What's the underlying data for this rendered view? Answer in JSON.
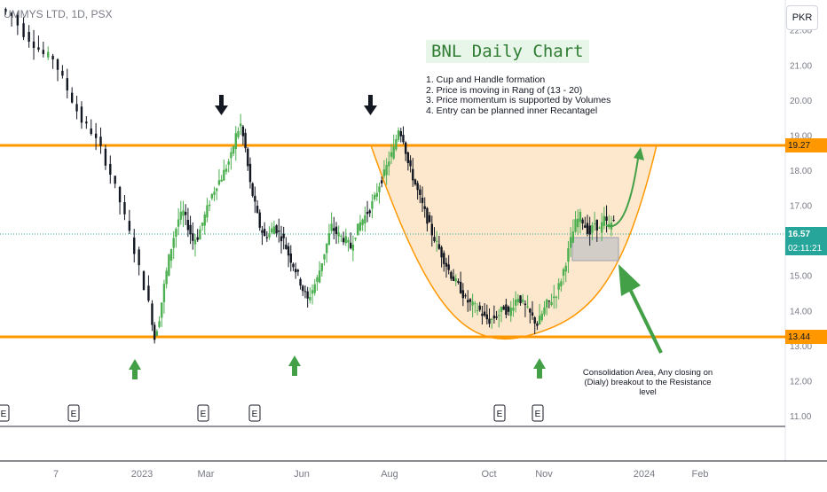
{
  "header": {
    "symbol": "UMMYS LTD, 1D, PSX",
    "currency": "PKR"
  },
  "annotations": {
    "title": "BNL Daily Chart",
    "notes": [
      "1. Cup and Handle formation",
      "2. Price is moving in Rang of (13 - 20)",
      "3. Price momentum is supported by Volumes",
      "4. Entry can be planned inner Recantagel"
    ],
    "consolidation_note": [
      "Consolidation Area, Any closing on",
      "(Dialy) breakout to the Resistance level"
    ]
  },
  "price_tags": {
    "resistance": "19.27",
    "current_price": "16.57",
    "countdown": "02:11:21",
    "support": "13.44"
  },
  "colors": {
    "level_line": "#ff9800",
    "bull": "#4caf50",
    "bear": "#131722",
    "cup_fill": "#fde4c4",
    "arrow_green": "#43a047",
    "arrow_dark": "#131722",
    "title_bg": "#e8f5e9",
    "title_text": "#2e7d32",
    "current_price_bg": "#26a69a"
  },
  "chart_data": {
    "type": "candlestick",
    "title": "UMMYS LTD, 1D, PSX",
    "ylim": [
      10.75,
      23.0
    ],
    "y_ticks": [
      11.0,
      12.0,
      13.0,
      14.0,
      15.0,
      16.0,
      17.0,
      18.0,
      19.0,
      20.0,
      21.0,
      22.0
    ],
    "x_tick_labels": [
      "7",
      "2023",
      "Mar",
      "Jun",
      "Aug",
      "Oct",
      "Nov",
      "2024",
      "Feb"
    ],
    "resistance_level": 19.27,
    "support_level": 13.44,
    "current_price": 16.57,
    "earnings_markers": [
      "E",
      "E",
      "E",
      "E",
      "E",
      "E"
    ],
    "trend_path": [
      [
        0,
        22.6
      ],
      [
        5,
        22.4
      ],
      [
        10,
        21.9
      ],
      [
        14,
        21.6
      ],
      [
        18,
        21.3
      ],
      [
        22,
        21.2
      ],
      [
        26,
        20.6
      ],
      [
        30,
        20.0
      ],
      [
        34,
        19.4
      ],
      [
        38,
        19.1
      ],
      [
        42,
        18.6
      ],
      [
        46,
        17.9
      ],
      [
        50,
        17.1
      ],
      [
        54,
        16.2
      ],
      [
        58,
        15.2
      ],
      [
        62,
        14.2
      ],
      [
        64,
        13.2
      ],
      [
        66,
        13.8
      ],
      [
        68,
        14.7
      ],
      [
        70,
        15.5
      ],
      [
        72,
        16.1
      ],
      [
        74,
        16.6
      ],
      [
        76,
        16.8
      ],
      [
        78,
        16.4
      ],
      [
        80,
        16.0
      ],
      [
        82,
        16.1
      ],
      [
        84,
        16.5
      ],
      [
        86,
        16.9
      ],
      [
        88,
        17.3
      ],
      [
        90,
        17.6
      ],
      [
        92,
        17.8
      ],
      [
        94,
        18.1
      ],
      [
        96,
        18.4
      ],
      [
        98,
        19.0
      ],
      [
        100,
        19.3
      ],
      [
        102,
        18.6
      ],
      [
        104,
        17.6
      ],
      [
        106,
        17.0
      ],
      [
        108,
        16.4
      ],
      [
        110,
        16.1
      ],
      [
        112,
        16.2
      ],
      [
        114,
        16.4
      ],
      [
        116,
        16.2
      ],
      [
        118,
        16.0
      ],
      [
        120,
        15.6
      ],
      [
        122,
        15.3
      ],
      [
        124,
        15.0
      ],
      [
        126,
        14.6
      ],
      [
        128,
        14.3
      ],
      [
        130,
        14.6
      ],
      [
        132,
        14.9
      ],
      [
        134,
        15.4
      ],
      [
        136,
        15.9
      ],
      [
        138,
        16.4
      ],
      [
        140,
        16.2
      ],
      [
        142,
        16.1
      ],
      [
        144,
        16.0
      ],
      [
        146,
        15.8
      ],
      [
        148,
        16.2
      ],
      [
        150,
        16.5
      ],
      [
        152,
        16.7
      ],
      [
        154,
        16.9
      ],
      [
        156,
        17.2
      ],
      [
        158,
        17.6
      ],
      [
        160,
        17.9
      ],
      [
        162,
        18.3
      ],
      [
        164,
        18.6
      ],
      [
        166,
        19.2
      ],
      [
        168,
        18.9
      ],
      [
        170,
        18.2
      ],
      [
        172,
        17.8
      ],
      [
        174,
        17.4
      ],
      [
        176,
        17.0
      ],
      [
        178,
        16.6
      ],
      [
        180,
        16.2
      ],
      [
        182,
        15.9
      ],
      [
        184,
        15.6
      ],
      [
        186,
        15.3
      ],
      [
        188,
        15.0
      ],
      [
        190,
        14.8
      ],
      [
        192,
        14.6
      ],
      [
        194,
        14.3
      ],
      [
        196,
        14.2
      ],
      [
        198,
        14.1
      ],
      [
        200,
        14.0
      ],
      [
        202,
        13.8
      ],
      [
        204,
        13.7
      ],
      [
        206,
        13.8
      ],
      [
        208,
        13.9
      ],
      [
        210,
        14.1
      ],
      [
        212,
        13.9
      ],
      [
        214,
        14.2
      ],
      [
        216,
        14.4
      ],
      [
        218,
        14.2
      ],
      [
        220,
        14.0
      ],
      [
        222,
        13.8
      ],
      [
        224,
        13.6
      ],
      [
        226,
        13.9
      ],
      [
        228,
        14.2
      ],
      [
        230,
        14.3
      ],
      [
        232,
        14.5
      ],
      [
        234,
        14.9
      ],
      [
        236,
        15.4
      ],
      [
        238,
        16.0
      ],
      [
        240,
        16.5
      ],
      [
        242,
        16.7
      ],
      [
        244,
        16.4
      ],
      [
        246,
        16.2
      ],
      [
        248,
        16.5
      ],
      [
        250,
        16.3
      ],
      [
        252,
        16.6
      ],
      [
        254,
        16.4
      ],
      [
        256,
        16.57
      ]
    ]
  }
}
